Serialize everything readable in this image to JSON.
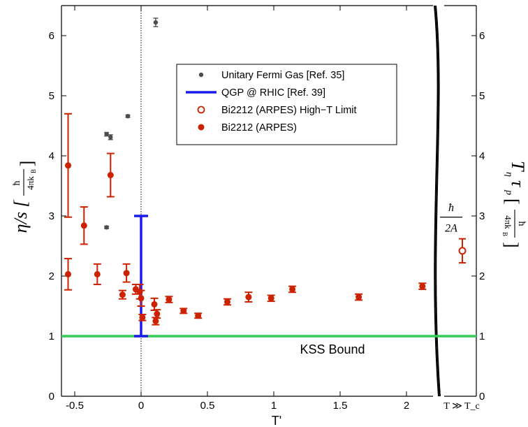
{
  "chart_data": {
    "type": "scatter",
    "xlabel": "T'",
    "ylabel_left": "η/s [ħ / 4πk_B]",
    "ylabel_right": "T_η τ_p [ħ / 4πk_B]",
    "xlim": [
      -0.6,
      2.2
    ],
    "ylim": [
      0,
      6.5
    ],
    "x_ticks": [
      "-0.5",
      "0",
      "0.5",
      "1",
      "1.5",
      "2"
    ],
    "x_tick_values": [
      -0.5,
      0,
      0.5,
      1,
      1.5,
      2
    ],
    "y_ticks": [
      "0",
      "1",
      "2",
      "3",
      "4",
      "5",
      "6"
    ],
    "y_tick_values": [
      0,
      1,
      2,
      3,
      4,
      5,
      6
    ],
    "extra_x_label": "T ≫ T_c",
    "grid": false,
    "legend_position": "upper-center",
    "kss_bound": {
      "label": "KSS Bound",
      "value": 1.0,
      "color": "#33cc55"
    },
    "series": [
      {
        "name": "Unitary Fermi Gas [Ref. 35]",
        "color": "#4d4d4d",
        "marker": "filled-circle",
        "points": [
          {
            "x": -0.26,
            "y": 4.36,
            "err": 0.03
          },
          {
            "x": -0.23,
            "y": 4.31,
            "err": 0.04
          },
          {
            "x": -0.1,
            "y": 4.66,
            "err": 0.02
          },
          {
            "x": -0.26,
            "y": 2.81,
            "err": 0.02
          },
          {
            "x": 0.11,
            "y": 6.22,
            "err": 0.07
          }
        ]
      },
      {
        "name": "QGP @ RHIC [Ref. 39]",
        "color": "#1a1aee",
        "marker": "error-bar",
        "points": [
          {
            "x": 0.0,
            "low": 1.0,
            "high": 3.0
          }
        ]
      },
      {
        "name": "Bi2212 (ARPES) High−T Limit",
        "color": "#cc2200",
        "marker": "open-circle",
        "points": [
          {
            "x": "T ≫ T_c",
            "y": 2.42,
            "err": 0.2
          }
        ]
      },
      {
        "name": "Bi2212 (ARPES)",
        "color": "#cc2200",
        "marker": "filled-circle",
        "points": [
          {
            "x": -0.55,
            "y": 3.84,
            "err": 0.86
          },
          {
            "x": -0.55,
            "y": 2.03,
            "err": 0.26
          },
          {
            "x": -0.43,
            "y": 2.84,
            "err": 0.31
          },
          {
            "x": -0.33,
            "y": 2.03,
            "err": 0.17
          },
          {
            "x": -0.23,
            "y": 3.68,
            "err": 0.36
          },
          {
            "x": -0.14,
            "y": 1.69,
            "err": 0.07
          },
          {
            "x": -0.11,
            "y": 2.05,
            "err": 0.15
          },
          {
            "x": -0.04,
            "y": 1.78,
            "err": 0.08
          },
          {
            "x": -0.01,
            "y": 1.74,
            "err": 0.12
          },
          {
            "x": 0.0,
            "y": 1.63,
            "err": 0.13
          },
          {
            "x": 0.01,
            "y": 1.31,
            "err": 0.05
          },
          {
            "x": 0.1,
            "y": 1.53,
            "err": 0.1
          },
          {
            "x": 0.11,
            "y": 1.25,
            "err": 0.06
          },
          {
            "x": 0.12,
            "y": 1.37,
            "err": 0.07
          },
          {
            "x": 0.21,
            "y": 1.61,
            "err": 0.05
          },
          {
            "x": 0.32,
            "y": 1.42,
            "err": 0.04
          },
          {
            "x": 0.43,
            "y": 1.34,
            "err": 0.04
          },
          {
            "x": 0.65,
            "y": 1.57,
            "err": 0.05
          },
          {
            "x": 0.81,
            "y": 1.65,
            "err": 0.08
          },
          {
            "x": 0.98,
            "y": 1.63,
            "err": 0.05
          },
          {
            "x": 1.14,
            "y": 1.78,
            "err": 0.05
          },
          {
            "x": 1.64,
            "y": 1.65,
            "err": 0.05
          },
          {
            "x": 2.12,
            "y": 1.83,
            "err": 0.05
          }
        ]
      }
    ],
    "annotations": {
      "right_panel_label": "ħ/2A"
    }
  }
}
